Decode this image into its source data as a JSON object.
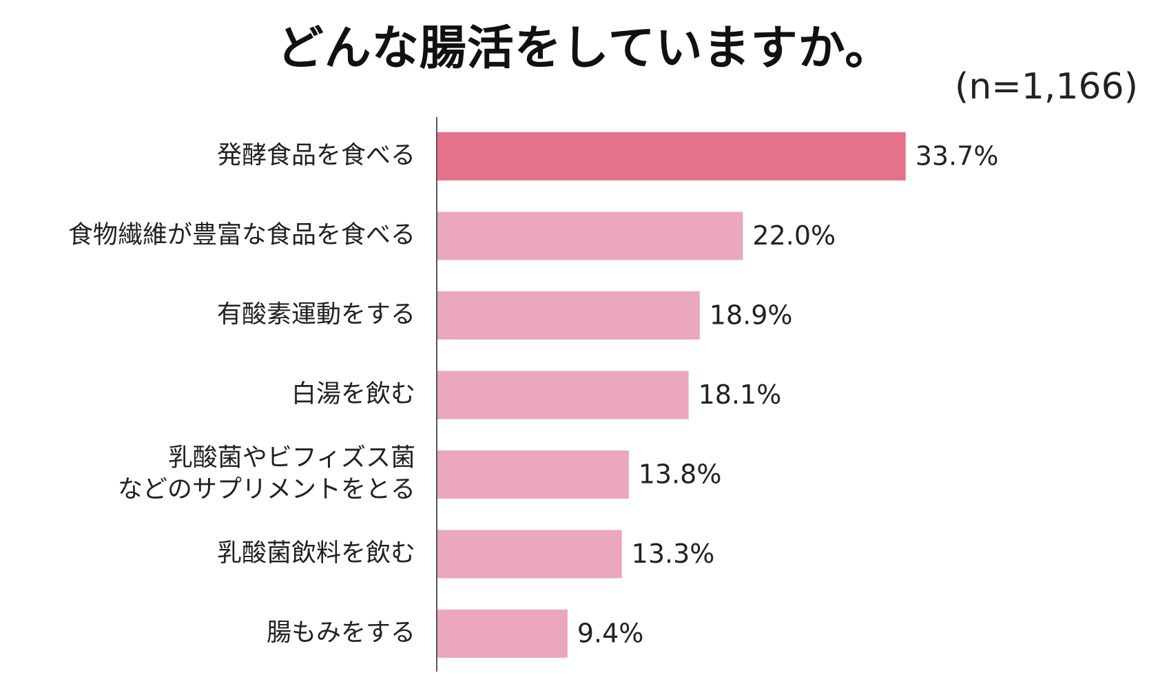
{
  "chart_data": {
    "type": "bar",
    "orientation": "horizontal",
    "title": "どんな腸活をしていますか。",
    "subtitle": "(n=1,166)",
    "xlabel": "",
    "ylabel": "",
    "unit": "%",
    "xlim": [
      0,
      45
    ],
    "grid": false,
    "legend": "none",
    "categories": [
      [
        "発酵食品を食べる"
      ],
      [
        "食物繊維が豊富な食品を食べる"
      ],
      [
        "有酸素運動をする"
      ],
      [
        "白湯を飲む"
      ],
      [
        "乳酸菌やビフィズス菌",
        "などのサプリメントをとる"
      ],
      [
        "乳酸菌飲料を飲む"
      ],
      [
        "腸もみをする"
      ]
    ],
    "values": [
      33.7,
      22.0,
      18.9,
      18.1,
      13.8,
      13.3,
      9.4
    ],
    "value_labels": [
      "33.7%",
      "22.0%",
      "18.9%",
      "18.1%",
      "13.8%",
      "13.3%",
      "9.4%"
    ],
    "colors": {
      "highlight": "#e5728a",
      "default": "#eaa7bf",
      "axis": "#555555",
      "text": "#222222"
    }
  }
}
